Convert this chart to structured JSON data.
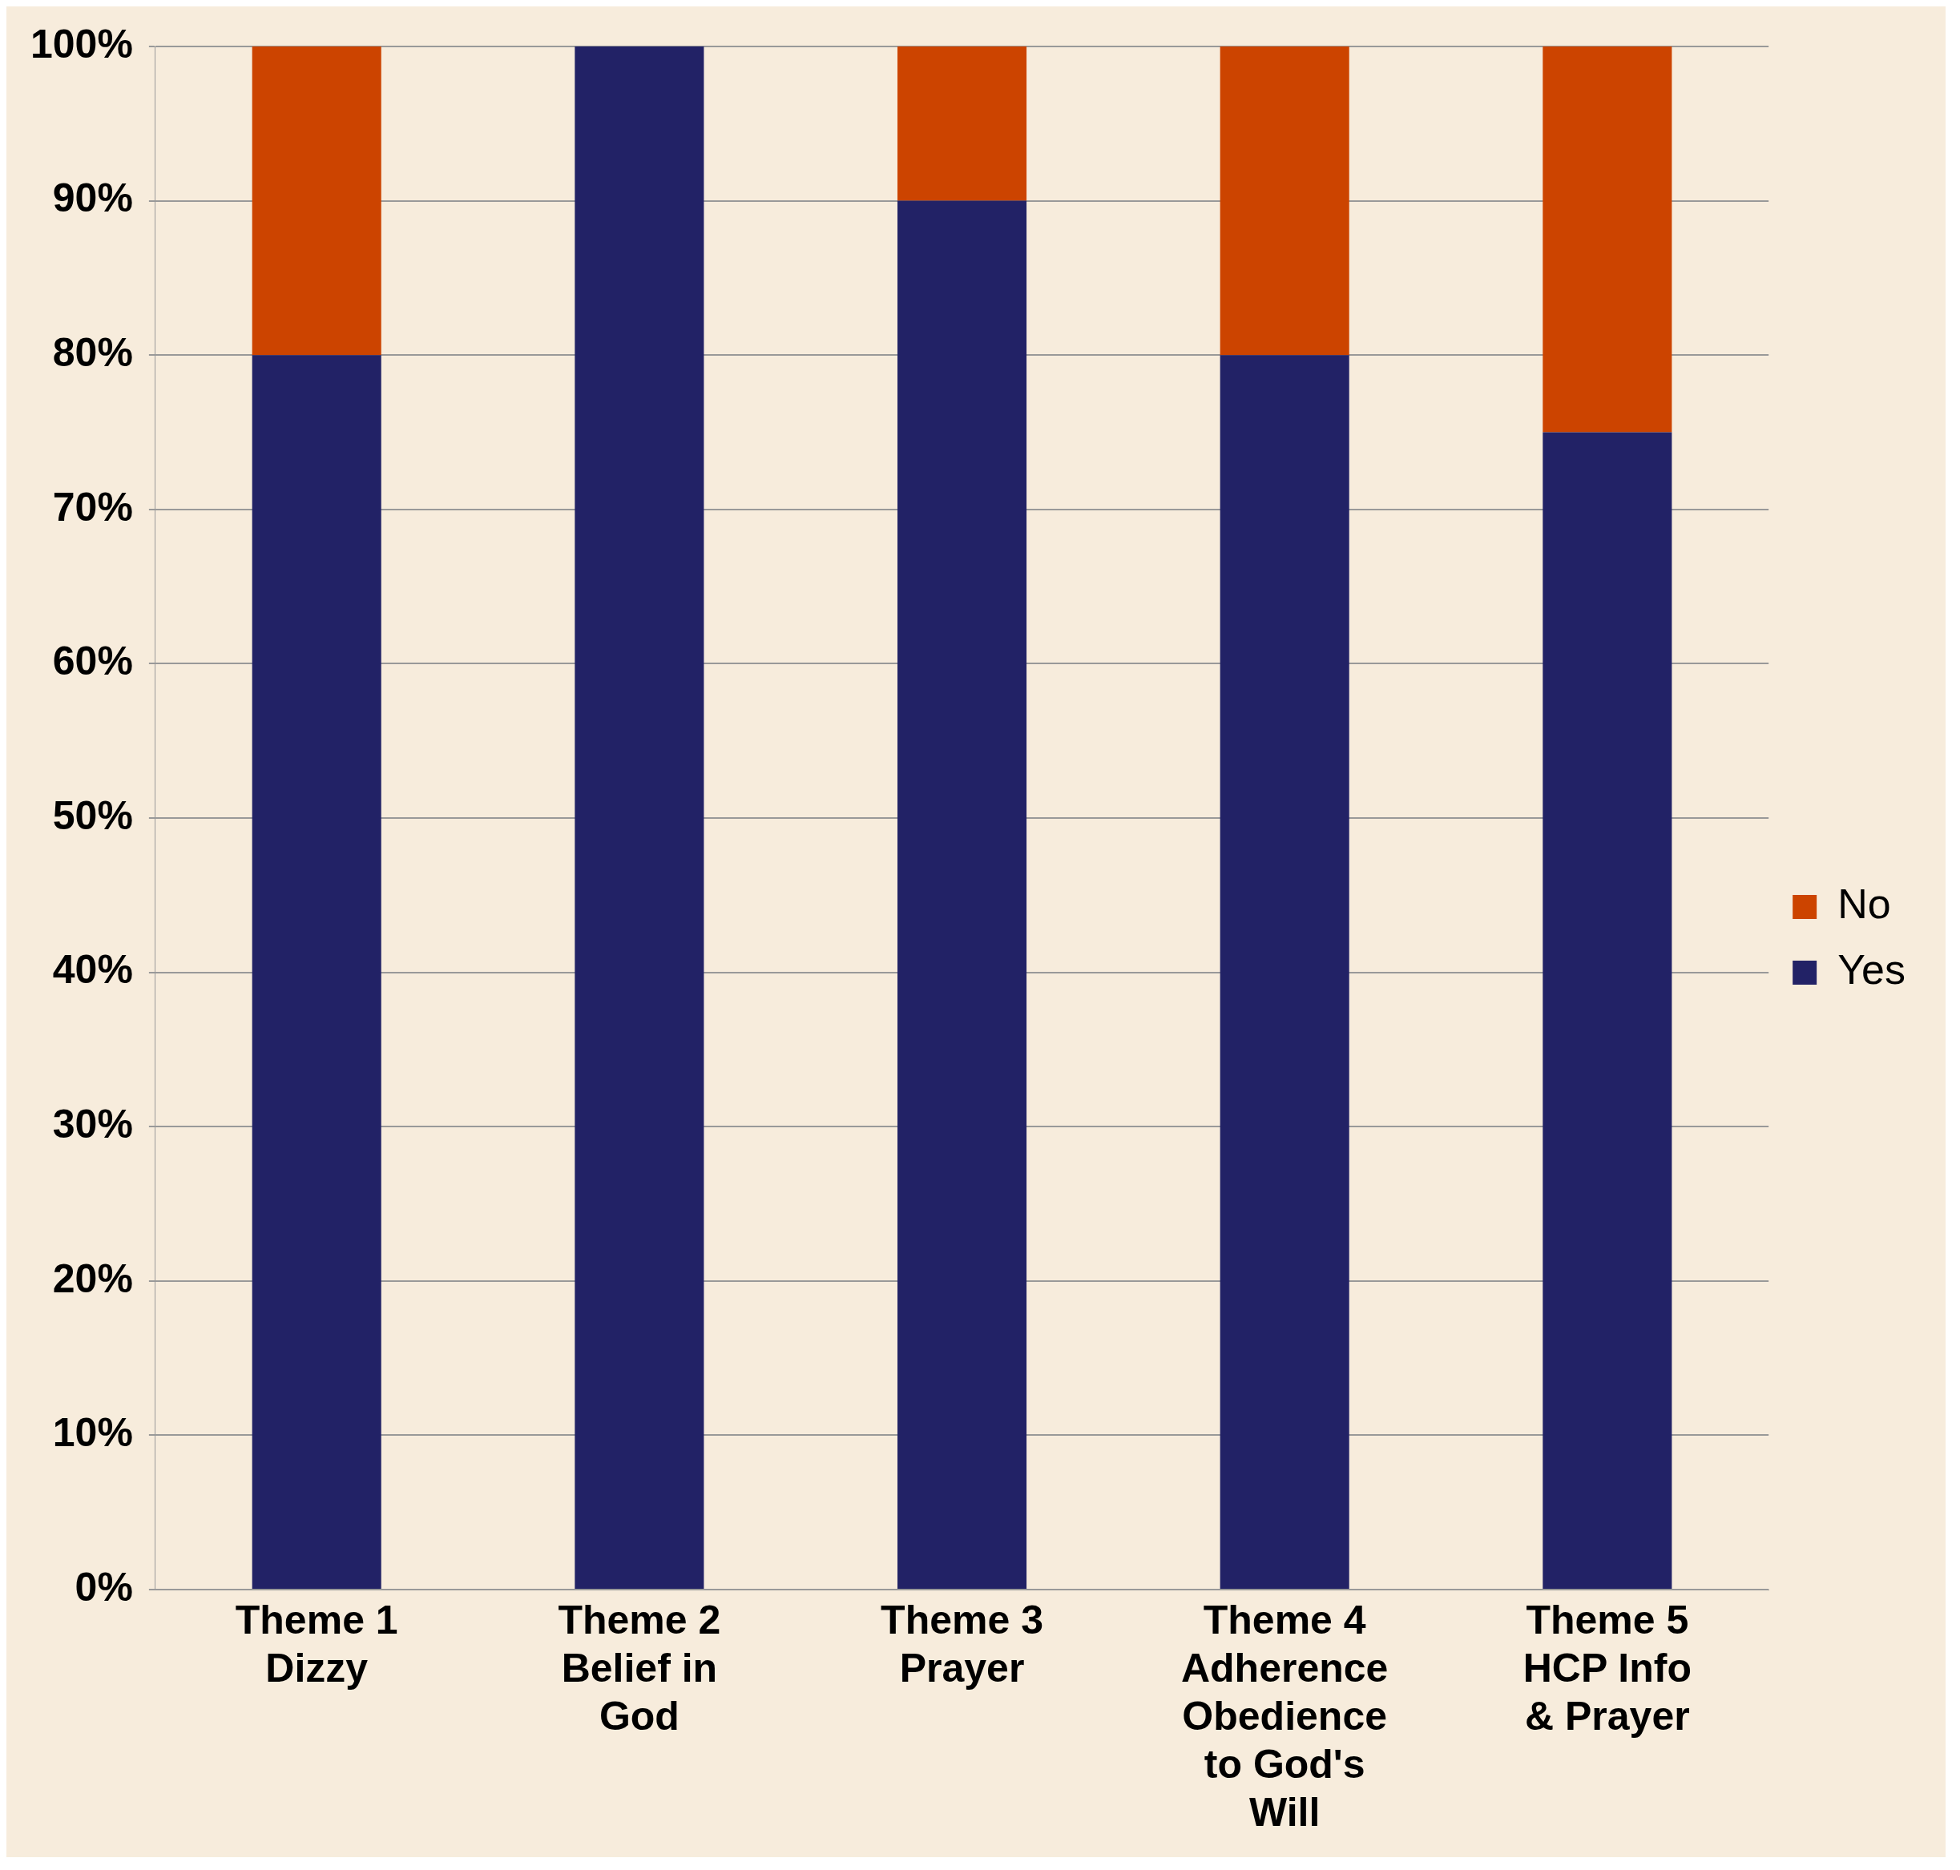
{
  "chart_data": {
    "type": "bar",
    "stacked": true,
    "categories": [
      "Theme 1 Dizzy",
      "Theme 2 Belief in God",
      "Theme 3 Prayer",
      "Theme 4 Adherence Obedience to God's Will",
      "Theme 5 HCP Info & Prayer"
    ],
    "series": [
      {
        "name": "Yes",
        "color": "#222266",
        "values": [
          80,
          100,
          90,
          80,
          75
        ]
      },
      {
        "name": "No",
        "color": "#cc4400",
        "values": [
          20,
          0,
          10,
          20,
          25
        ]
      }
    ],
    "ylim": [
      0,
      100
    ],
    "yticks": [
      {
        "value": 0,
        "label": "0%"
      },
      {
        "value": 10,
        "label": "10%"
      },
      {
        "value": 20,
        "label": "20%"
      },
      {
        "value": 30,
        "label": "30%"
      },
      {
        "value": 40,
        "label": "40%"
      },
      {
        "value": 50,
        "label": "50%"
      },
      {
        "value": 60,
        "label": "60%"
      },
      {
        "value": 70,
        "label": "70%"
      },
      {
        "value": 80,
        "label": "80%"
      },
      {
        "value": 90,
        "label": "90%"
      },
      {
        "value": 100,
        "label": "100%"
      }
    ],
    "grid": "y",
    "legend": "right"
  }
}
